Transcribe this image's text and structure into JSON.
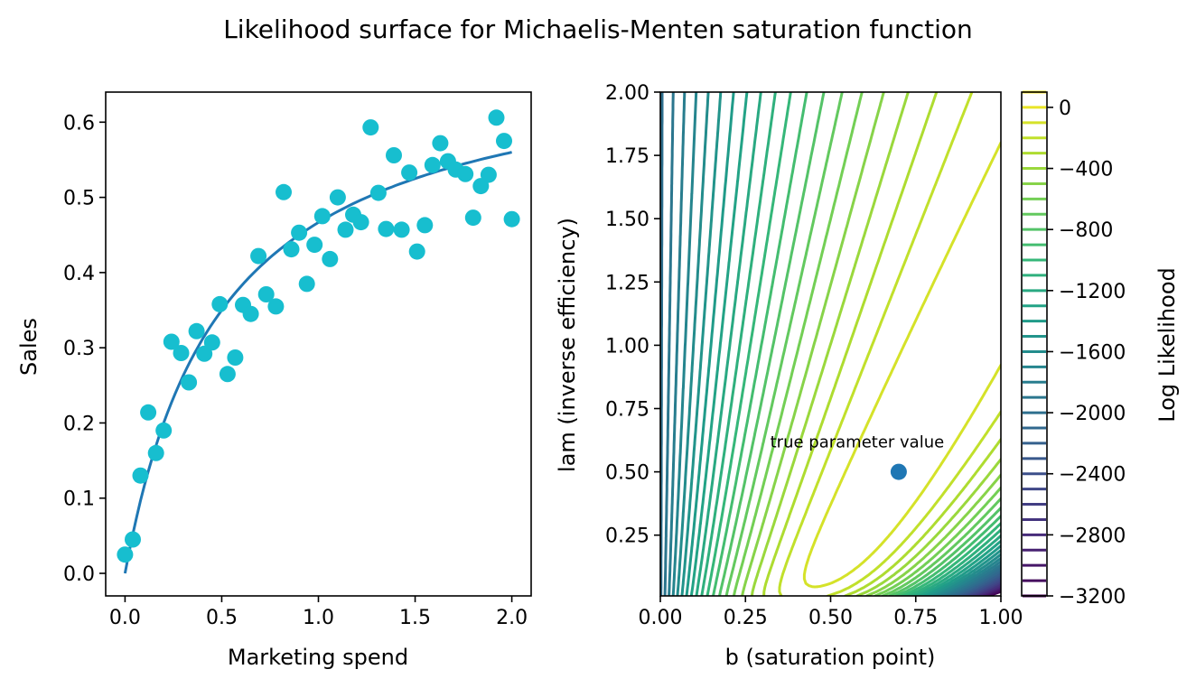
{
  "figure_title": "Likelihood surface for Michaelis-Menten saturation function",
  "colors": {
    "scatter": "#17becf",
    "fit_line": "#1f77b4",
    "true_point": "#1f77b4",
    "colormap": "viridis"
  },
  "chart_data": [
    {
      "type": "scatter",
      "title": "",
      "xlabel": "Marketing spend",
      "ylabel": "Sales",
      "xlim": [
        -0.1,
        2.1
      ],
      "ylim": [
        -0.03,
        0.64
      ],
      "xticks": [
        "0.0",
        "0.5",
        "1.0",
        "1.5",
        "2.0"
      ],
      "yticks": [
        "0.0",
        "0.1",
        "0.2",
        "0.3",
        "0.4",
        "0.5",
        "0.6"
      ],
      "points": [
        [
          0.0,
          0.025
        ],
        [
          0.04,
          0.045
        ],
        [
          0.08,
          0.13
        ],
        [
          0.12,
          0.214
        ],
        [
          0.16,
          0.16
        ],
        [
          0.2,
          0.19
        ],
        [
          0.24,
          0.308
        ],
        [
          0.29,
          0.293
        ],
        [
          0.33,
          0.254
        ],
        [
          0.37,
          0.322
        ],
        [
          0.41,
          0.292
        ],
        [
          0.45,
          0.307
        ],
        [
          0.49,
          0.358
        ],
        [
          0.53,
          0.265
        ],
        [
          0.57,
          0.287
        ],
        [
          0.61,
          0.357
        ],
        [
          0.65,
          0.345
        ],
        [
          0.69,
          0.422
        ],
        [
          0.73,
          0.371
        ],
        [
          0.78,
          0.355
        ],
        [
          0.82,
          0.507
        ],
        [
          0.86,
          0.431
        ],
        [
          0.9,
          0.453
        ],
        [
          0.94,
          0.385
        ],
        [
          0.98,
          0.437
        ],
        [
          1.02,
          0.475
        ],
        [
          1.06,
          0.418
        ],
        [
          1.1,
          0.5
        ],
        [
          1.14,
          0.457
        ],
        [
          1.18,
          0.477
        ],
        [
          1.22,
          0.467
        ],
        [
          1.27,
          0.593
        ],
        [
          1.31,
          0.506
        ],
        [
          1.35,
          0.458
        ],
        [
          1.39,
          0.556
        ],
        [
          1.43,
          0.457
        ],
        [
          1.47,
          0.533
        ],
        [
          1.51,
          0.428
        ],
        [
          1.55,
          0.463
        ],
        [
          1.59,
          0.543
        ],
        [
          1.63,
          0.572
        ],
        [
          1.67,
          0.548
        ],
        [
          1.71,
          0.537
        ],
        [
          1.76,
          0.531
        ],
        [
          1.8,
          0.473
        ],
        [
          1.84,
          0.515
        ],
        [
          1.88,
          0.53
        ],
        [
          1.92,
          0.606
        ],
        [
          1.96,
          0.575
        ],
        [
          2.0,
          0.471
        ]
      ],
      "fit_curve": {
        "form": "Michaelis-Menten",
        "b": 0.7,
        "lam": 0.5
      }
    },
    {
      "type": "contour",
      "title": "",
      "xlabel": "b (saturation point)",
      "ylabel": "lam (inverse efficiency)",
      "xlim": [
        0.0,
        1.0
      ],
      "ylim": [
        0.01,
        2.0
      ],
      "xticks": [
        "0.00",
        "0.25",
        "0.50",
        "0.75",
        "1.00"
      ],
      "yticks": [
        "0.25",
        "0.50",
        "0.75",
        "1.00",
        "1.25",
        "1.50",
        "1.75",
        "2.00"
      ],
      "colorbar_label": "Log Likelihood",
      "colorbar_ticks": [
        "0",
        "−400",
        "−800",
        "−1200",
        "−1600",
        "−2000",
        "−2400",
        "−2800",
        "−3200"
      ],
      "colorbar_range": [
        -3200,
        100
      ],
      "level_step": 100,
      "true_parameter": {
        "b": 0.7,
        "lam": 0.5,
        "label": "true parameter value"
      }
    }
  ]
}
